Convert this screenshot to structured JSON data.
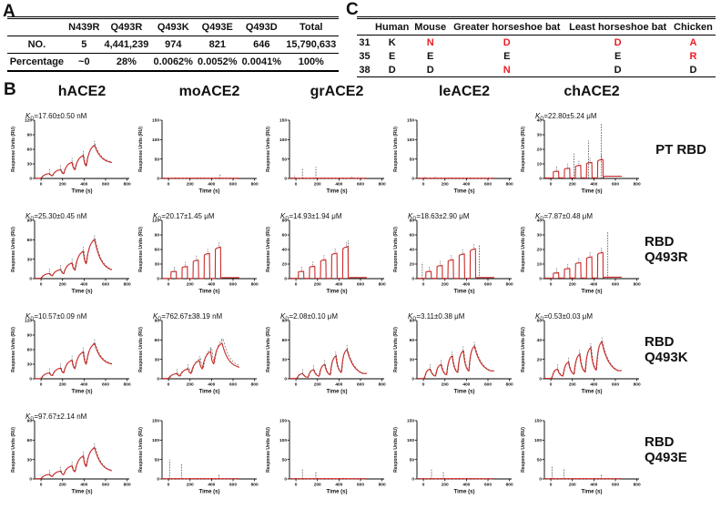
{
  "colors": {
    "red_accent": "#ed1c24",
    "curve": "#cc2a27",
    "fit": "#444444"
  },
  "panel_a": {
    "label": "A",
    "header": [
      "",
      "N439R",
      "Q493R",
      "Q493K",
      "Q493E",
      "Q493D",
      "Total"
    ],
    "rows": [
      {
        "cells": [
          "NO.",
          "5",
          "4,441,239",
          "974",
          "821",
          "646",
          "15,790,633"
        ]
      },
      {
        "cells": [
          "Percentage",
          "~0",
          "28%",
          "0.0062%",
          "0.0052%",
          "0.0041%",
          "100%"
        ]
      }
    ]
  },
  "panel_c": {
    "label": "C",
    "header": [
      "",
      "Human",
      "Mouse",
      "Greater horseshoe bat",
      "Least horseshoe bat",
      "Chicken"
    ],
    "rows": [
      {
        "cells": [
          {
            "t": "31"
          },
          {
            "t": "K"
          },
          {
            "t": "N",
            "red": true
          },
          {
            "t": "D",
            "red": true
          },
          {
            "t": "D",
            "red": true
          },
          {
            "t": "A",
            "red": true
          }
        ]
      },
      {
        "cells": [
          {
            "t": "35"
          },
          {
            "t": "E"
          },
          {
            "t": "E"
          },
          {
            "t": "E"
          },
          {
            "t": "E"
          },
          {
            "t": "R",
            "red": true
          }
        ]
      },
      {
        "cells": [
          {
            "t": "38"
          },
          {
            "t": "D"
          },
          {
            "t": "D"
          },
          {
            "t": "N",
            "red": true
          },
          {
            "t": "D"
          },
          {
            "t": "D"
          }
        ]
      }
    ]
  },
  "panel_b": {
    "label": "B",
    "col_headers": [
      "hACE2",
      "moACE2",
      "grACE2",
      "leACE2",
      "chACE2"
    ],
    "row_labels": [
      "PT RBD",
      "RBD Q493R",
      "RBD Q493K",
      "RBD Q493E"
    ],
    "axis": {
      "xlabel": "Time (s)",
      "ylabel": "Response Units (RU)",
      "x_ticks": [
        0,
        200,
        400,
        600,
        800
      ],
      "x_range": [
        -60,
        820
      ]
    }
  },
  "chart_data": [
    {
      "row": 0,
      "col": 0,
      "type": "line",
      "shape": "saw",
      "kd": "17.60±0.50 nM",
      "y_ticks": [
        0,
        30,
        60,
        90,
        120
      ],
      "peaks_ru": [
        10,
        18,
        33,
        47,
        68
      ],
      "tail_ru": 30,
      "fit": 1,
      "spikes": []
    },
    {
      "row": 0,
      "col": 1,
      "type": "line",
      "shape": "flat",
      "kd": null,
      "y_ticks": [
        0,
        50,
        100,
        150
      ],
      "peaks_ru": [],
      "tail_ru": 0,
      "fit": 0,
      "spikes": [
        [
          480,
          10
        ]
      ]
    },
    {
      "row": 0,
      "col": 2,
      "type": "line",
      "shape": "flat",
      "kd": null,
      "y_ticks": [
        0,
        50,
        100,
        150
      ],
      "peaks_ru": [],
      "tail_ru": 0,
      "fit": 0,
      "spikes": [
        [
          -15,
          8
        ],
        [
          60,
          28
        ],
        [
          185,
          30
        ],
        [
          520,
          6
        ]
      ]
    },
    {
      "row": 0,
      "col": 3,
      "type": "line",
      "shape": "flat",
      "kd": null,
      "y_ticks": [
        0,
        50,
        100,
        150
      ],
      "peaks_ru": [],
      "tail_ru": 0,
      "fit": 0,
      "spikes": [
        [
          15,
          6
        ],
        [
          110,
          5
        ]
      ]
    },
    {
      "row": 0,
      "col": 4,
      "type": "line",
      "shape": "sq",
      "kd": "22.80±5.24 μM",
      "y_ticks": [
        0,
        10,
        20,
        30,
        40
      ],
      "peaks_ru": [
        5,
        7,
        9,
        11,
        13
      ],
      "tail_ru": 1.5,
      "fit": 0,
      "spikes": [
        [
          215,
          17
        ],
        [
          350,
          26
        ],
        [
          470,
          38
        ]
      ]
    },
    {
      "row": 1,
      "col": 0,
      "type": "line",
      "shape": "saw",
      "kd": "25.30±0.45 nM",
      "y_ticks": [
        0,
        30,
        60,
        90
      ],
      "peaks_ru": [
        8,
        14,
        24,
        42,
        60
      ],
      "tail_ru": 10,
      "fit": 1,
      "spikes": []
    },
    {
      "row": 1,
      "col": 1,
      "type": "line",
      "shape": "sq",
      "kd": "20.17±1.45 μM",
      "y_ticks": [
        0,
        30,
        60,
        90,
        120
      ],
      "peaks_ru": [
        15,
        25,
        38,
        52,
        65
      ],
      "tail_ru": 2,
      "fit": 0,
      "spikes": []
    },
    {
      "row": 1,
      "col": 2,
      "type": "line",
      "shape": "sq",
      "kd": "14.93±1.94 μM",
      "y_ticks": [
        0,
        20,
        40,
        60,
        80
      ],
      "peaks_ru": [
        10,
        17,
        26,
        35,
        44
      ],
      "tail_ru": 1.5,
      "fit": 0,
      "spikes": [
        [
          487,
          52
        ]
      ]
    },
    {
      "row": 1,
      "col": 3,
      "type": "line",
      "shape": "sq",
      "kd": "18.63±2.90 μM",
      "y_ticks": [
        0,
        20,
        40,
        60,
        80
      ],
      "peaks_ru": [
        10,
        18,
        26,
        34,
        41
      ],
      "tail_ru": 1.5,
      "fit": 0,
      "spikes": [
        [
          -10,
          22
        ],
        [
          520,
          46
        ]
      ]
    },
    {
      "row": 1,
      "col": 4,
      "type": "line",
      "shape": "sq",
      "kd": "7.87±0.48 μM",
      "y_ticks": [
        0,
        10,
        20,
        30,
        40
      ],
      "peaks_ru": [
        4,
        7,
        11,
        15,
        18
      ],
      "tail_ru": 1,
      "fit": 0,
      "spikes": [
        [
          435,
          16
        ],
        [
          530,
          32
        ]
      ]
    },
    {
      "row": 2,
      "col": 0,
      "type": "line",
      "shape": "saw",
      "kd": "10.57±0.09 nM",
      "y_ticks": [
        0,
        30,
        60,
        90,
        120
      ],
      "peaks_ru": [
        12,
        22,
        38,
        55,
        72
      ],
      "tail_ru": 27,
      "fit": 1,
      "spikes": []
    },
    {
      "row": 2,
      "col": 1,
      "type": "line",
      "shape": "saw",
      "kd": "762.67±38.19 nM",
      "y_ticks": [
        0,
        30,
        60,
        90
      ],
      "peaks_ru": [
        8,
        15,
        28,
        42,
        55
      ],
      "tail_ru": 15,
      "fit": 2,
      "spikes": []
    },
    {
      "row": 2,
      "col": 2,
      "type": "line",
      "shape": "rnd",
      "kd": "2.08±0.10 μM",
      "y_ticks": [
        0,
        30,
        60,
        90
      ],
      "peaks_ru": [
        8,
        14,
        22,
        35,
        45
      ],
      "tail_ru": 4,
      "fit": 1,
      "spikes": []
    },
    {
      "row": 2,
      "col": 3,
      "type": "line",
      "shape": "rnd",
      "kd": "3.11±0.38 μM",
      "y_ticks": [
        0,
        30,
        60,
        90
      ],
      "peaks_ru": [
        15,
        22,
        35,
        43,
        50
      ],
      "tail_ru": 8,
      "fit": 1,
      "spikes": []
    },
    {
      "row": 2,
      "col": 4,
      "type": "line",
      "shape": "rnd",
      "kd": "0.53±0.03 μM",
      "y_ticks": [
        0,
        20,
        40,
        60
      ],
      "peaks_ru": [
        10,
        17,
        25,
        32,
        38
      ],
      "tail_ru": 5,
      "fit": 1,
      "spikes": []
    },
    {
      "row": 3,
      "col": 0,
      "type": "line",
      "shape": "saw",
      "kd": "97.67±2.14 nM",
      "y_ticks": [
        0,
        30,
        60,
        90
      ],
      "peaks_ru": [
        7,
        12,
        20,
        35,
        48
      ],
      "tail_ru": 10,
      "fit": 1,
      "spikes": []
    },
    {
      "row": 3,
      "col": 1,
      "type": "line",
      "shape": "flat",
      "kd": null,
      "y_ticks": [
        0,
        50,
        100,
        150
      ],
      "peaks_ru": [],
      "tail_ru": 0,
      "fit": 0,
      "spikes": [
        [
          10,
          50
        ],
        [
          120,
          38
        ],
        [
          470,
          12
        ]
      ]
    },
    {
      "row": 3,
      "col": 2,
      "type": "line",
      "shape": "flat",
      "kd": null,
      "y_ticks": [
        0,
        50,
        100,
        150
      ],
      "peaks_ru": [],
      "tail_ru": 0,
      "fit": 0,
      "spikes": [
        [
          60,
          25
        ],
        [
          185,
          20
        ]
      ]
    },
    {
      "row": 3,
      "col": 3,
      "type": "line",
      "shape": "flat",
      "kd": null,
      "y_ticks": [
        0,
        50,
        100,
        150
      ],
      "peaks_ru": [],
      "tail_ru": 0,
      "fit": 0,
      "spikes": [
        [
          75,
          25
        ],
        [
          185,
          18
        ]
      ]
    },
    {
      "row": 3,
      "col": 4,
      "type": "line",
      "shape": "flat",
      "kd": null,
      "y_ticks": [
        0,
        50,
        100,
        150
      ],
      "peaks_ru": [],
      "tail_ru": 0,
      "fit": 0,
      "spikes": [
        [
          10,
          33
        ],
        [
          120,
          28
        ],
        [
          470,
          12
        ]
      ]
    }
  ]
}
